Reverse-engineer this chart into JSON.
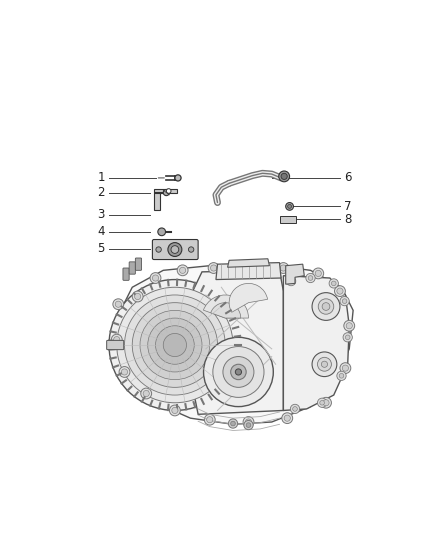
{
  "background_color": "#ffffff",
  "figure_width": 4.38,
  "figure_height": 5.33,
  "dpi": 100,
  "parts_left": [
    {
      "num": "1",
      "nx": 0.115,
      "ny": 0.77
    },
    {
      "num": "2",
      "nx": 0.115,
      "ny": 0.735
    },
    {
      "num": "3",
      "nx": 0.115,
      "ny": 0.688
    },
    {
      "num": "4",
      "nx": 0.115,
      "ny": 0.655
    },
    {
      "num": "5",
      "nx": 0.115,
      "ny": 0.618
    }
  ],
  "parts_right": [
    {
      "num": "6",
      "nx": 0.885,
      "ny": 0.77
    },
    {
      "num": "7",
      "nx": 0.885,
      "ny": 0.718
    },
    {
      "num": "8",
      "nx": 0.885,
      "ny": 0.685
    }
  ],
  "line_color": "#444444",
  "text_color": "#222222",
  "part_fontsize": 8.5,
  "callout_line_lw": 0.7
}
